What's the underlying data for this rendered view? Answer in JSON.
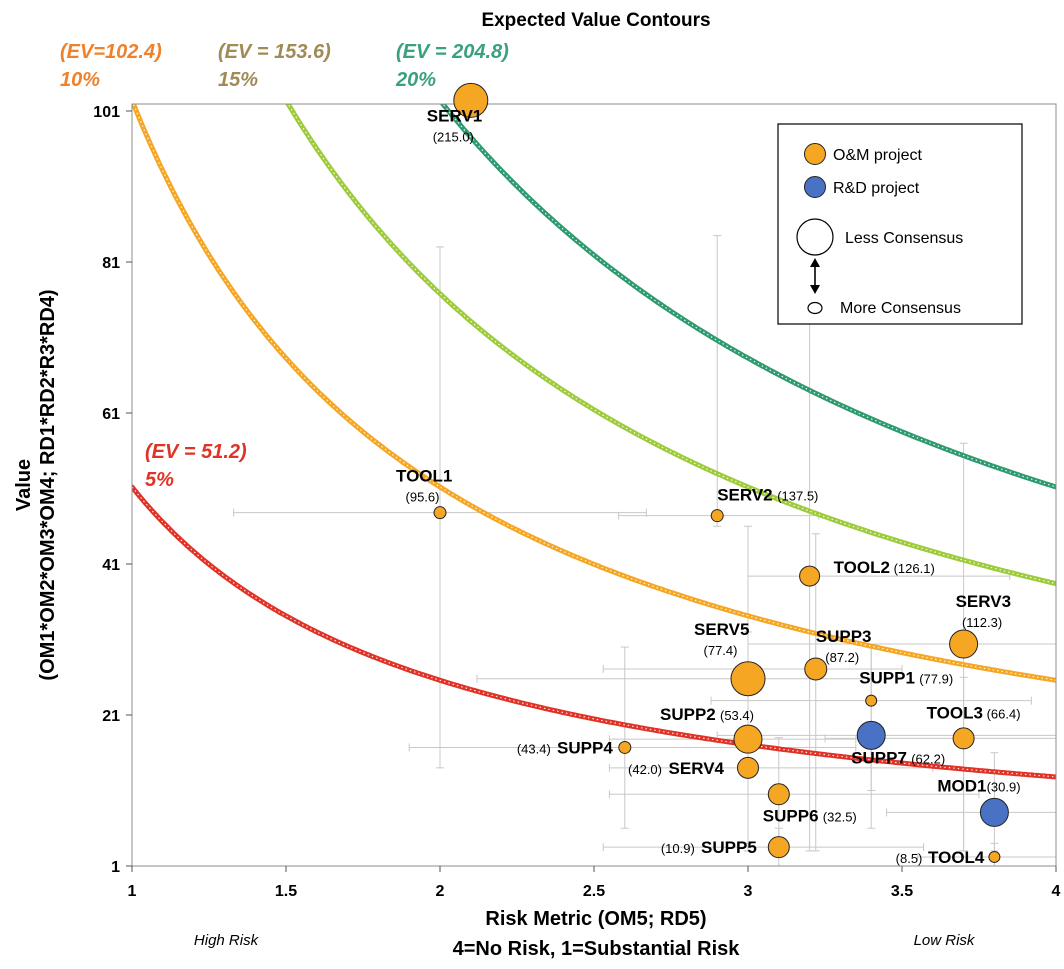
{
  "chart_data": {
    "type": "scatter",
    "title": "Expected Value Contours",
    "xlabel": "Risk Metric (OM5; RD5)",
    "xlabel2": "4=No Risk, 1=Substantial Risk",
    "x_left_note": "High Risk",
    "x_right_note": "Low Risk",
    "ylabel": "Value",
    "ylabel2": "(OM1*OM2*OM3*OM4; RD1*RD2*R3*RD4)",
    "xlim": [
      1,
      4
    ],
    "ylim": [
      1,
      101
    ],
    "x_ticks": [
      1,
      1.5,
      2,
      2.5,
      3,
      3.5,
      4
    ],
    "x_tick_labels": [
      "1",
      "1.5",
      "2",
      "2.5",
      "3",
      "3.5",
      "4"
    ],
    "y_ticks": [
      1,
      21,
      41,
      61,
      81,
      101
    ],
    "y_tick_labels": [
      "1",
      "21",
      "41",
      "61",
      "81",
      "101"
    ],
    "grid": false,
    "legend_position": "top-right",
    "legend": {
      "om_label": "O&M project",
      "rd_label": "R&D project",
      "less_label": "Less Consensus",
      "more_label": "More Consensus"
    },
    "colors": {
      "om": "#f5a623",
      "rd": "#4a72c4",
      "errorbar": "#c8c8c8"
    },
    "contours": [
      {
        "ev": 51.2,
        "label1": "(EV = 51.2)",
        "label2": "5%",
        "color": "#e03226",
        "label_color": "#e03226"
      },
      {
        "ev": 102.4,
        "label1": "(EV=102.4)",
        "label2": "10%",
        "color": "#f5a623",
        "label_color": "#f0812a"
      },
      {
        "ev": 153.6,
        "label1": "(EV = 153.6)",
        "label2": "15%",
        "color": "#9dcb3c",
        "label_color": "#a08a56"
      },
      {
        "ev": 204.8,
        "label1": "(EV = 204.8)",
        "label2": "20%",
        "color": "#2e9a6f",
        "label_color": "#3aa17e"
      }
    ],
    "points": [
      {
        "name": "SERV1",
        "ev": "(215.0)",
        "x": 2.1,
        "y": 102.4,
        "kind": "om",
        "size": 3.2,
        "xerr": [
          1.37,
          2.85
        ],
        "yerr": null
      },
      {
        "name": "TOOL1",
        "ev": "(95.6)",
        "x": 2.0,
        "y": 47.8,
        "kind": "om",
        "size": 1.0,
        "xerr": [
          1.33,
          2.67
        ],
        "yerr": [
          14.0,
          83.0
        ]
      },
      {
        "name": "SERV2",
        "ev": "(137.5)",
        "x": 2.9,
        "y": 47.4,
        "kind": "om",
        "size": 1.0,
        "xerr": [
          2.58,
          3.23
        ],
        "yerr": [
          46.0,
          84.5
        ]
      },
      {
        "name": "TOOL2",
        "ev": "(126.1)",
        "x": 3.2,
        "y": 39.4,
        "kind": "om",
        "size": 1.8,
        "xerr": [
          3.0,
          3.85
        ],
        "yerr": [
          3.0,
          73.0
        ]
      },
      {
        "name": "SERV3",
        "ev": "(112.3)",
        "x": 3.7,
        "y": 30.4,
        "kind": "om",
        "size": 2.6,
        "xerr": [
          3.0,
          4.0
        ],
        "yerr": [
          3.0,
          57.0
        ]
      },
      {
        "name": "SERV5",
        "ev": "(77.4)",
        "x": 3.0,
        "y": 25.8,
        "kind": "om",
        "size": 3.2,
        "xerr": [
          2.12,
          3.4
        ],
        "yerr": [
          3.0,
          46.0
        ]
      },
      {
        "name": "SUPP3",
        "ev": "(87.2)",
        "x": 3.22,
        "y": 27.1,
        "kind": "om",
        "size": 2.0,
        "xerr": [
          2.53,
          3.5
        ],
        "yerr": [
          3.0,
          45.0
        ]
      },
      {
        "name": "SUPP1",
        "ev": "(77.9)",
        "x": 3.4,
        "y": 22.9,
        "kind": "om",
        "size": 0.9,
        "xerr": [
          2.88,
          3.92
        ],
        "yerr": [
          11.0,
          30.0
        ]
      },
      {
        "name": "SUPP2",
        "ev": "(53.4)",
        "x": 3.0,
        "y": 17.8,
        "kind": "om",
        "size": 2.6,
        "xerr": [
          2.55,
          3.35
        ],
        "yerr": [
          4.0,
          32.0
        ]
      },
      {
        "name": "SUPP7",
        "ev": "(62.2)",
        "x": 3.4,
        "y": 18.3,
        "kind": "rd",
        "size": 2.6,
        "xerr": [
          2.9,
          4.0
        ],
        "yerr": [
          6.0,
          30.0
        ]
      },
      {
        "name": "TOOL3",
        "ev": "(66.4)",
        "x": 3.7,
        "y": 17.9,
        "kind": "om",
        "size": 1.9,
        "xerr": [
          3.25,
          4.0
        ],
        "yerr": [
          3.0,
          26.0
        ]
      },
      {
        "name": "SUPP4",
        "ev": "(43.4)",
        "x": 2.6,
        "y": 16.7,
        "kind": "om",
        "size": 1.0,
        "xerr": [
          1.9,
          3.35
        ],
        "yerr": [
          6.0,
          30.0
        ]
      },
      {
        "name": "SERV4",
        "ev": "(42.0)",
        "x": 3.0,
        "y": 14.0,
        "kind": "om",
        "size": 1.9,
        "xerr": [
          2.55,
          3.6
        ],
        "yerr": [
          3.0,
          24.0
        ]
      },
      {
        "name": "SUPP6",
        "ev": "(32.5)",
        "x": 3.1,
        "y": 10.5,
        "kind": "om",
        "size": 1.9,
        "xerr": [
          2.55,
          3.75
        ],
        "yerr": [
          3.0,
          18.0
        ]
      },
      {
        "name": "MOD1",
        "ev": "(30.9)",
        "x": 3.8,
        "y": 8.1,
        "kind": "rd",
        "size": 2.6,
        "xerr": [
          3.45,
          4.0
        ],
        "yerr": [
          3.0,
          16.0
        ]
      },
      {
        "name": "SUPP5",
        "ev": "(10.9)",
        "x": 3.1,
        "y": 3.5,
        "kind": "om",
        "size": 1.9,
        "xerr": [
          2.53,
          3.57
        ],
        "yerr": [
          1.0,
          6.0
        ]
      },
      {
        "name": "TOOL4",
        "ev": "(8.5)",
        "x": 3.8,
        "y": 2.2,
        "kind": "om",
        "size": 0.9,
        "xerr": [
          3.55,
          4.0
        ],
        "yerr": [
          1.0,
          4.0
        ]
      }
    ]
  }
}
